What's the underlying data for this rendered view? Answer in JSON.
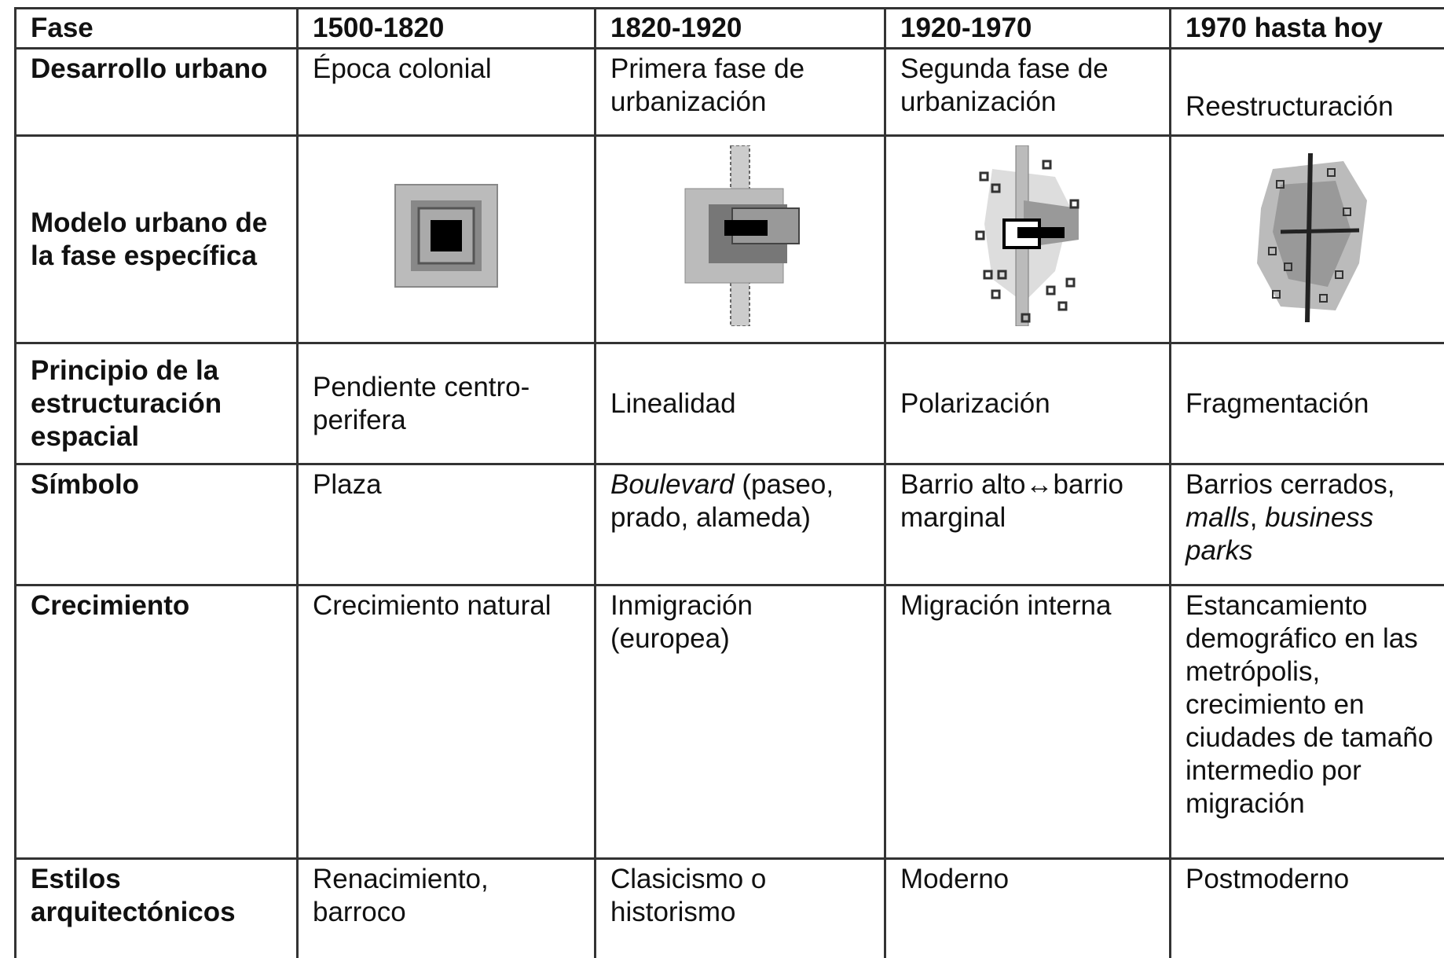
{
  "table": {
    "header": [
      "Fase",
      "1500-1820",
      "1820-1920",
      "1920-1970",
      "1970 hasta hoy"
    ],
    "rows": [
      {
        "label": "Desarrollo urbano",
        "cells": [
          "Época colonial",
          "Primera fase de urbanización",
          "Segunda fase de urbanización",
          "Reestructuración"
        ]
      },
      {
        "label": "Modelo urbano de la fase específica"
      },
      {
        "label": "Principio de la estructuración espacial",
        "cells": [
          "Pendiente centro-perifera",
          "Linealidad",
          "Polarización",
          "Fragmentación"
        ]
      },
      {
        "label": "Símbolo",
        "cells": [
          "Plaza",
          [
            "Boulevard",
            " (paseo, prado, alameda)"
          ],
          "Barrio alto↔barrio marginal",
          [
            "Barrios cerrados, ",
            "malls",
            ", ",
            "business parks"
          ]
        ]
      },
      {
        "label": "Crecimiento",
        "cells": [
          "Crecimiento natural",
          "Inmigración (europea)",
          "Migración interna",
          "Estancamiento demográfico en las metrópolis, crecimiento en ciudades de tamaño intermedio por migración"
        ]
      },
      {
        "label": "Estilos arquitectónicos",
        "cells": [
          "Renacimiento, barroco",
          "Clasicismo o historismo",
          "Moderno",
          "Postmoderno"
        ]
      }
    ]
  }
}
